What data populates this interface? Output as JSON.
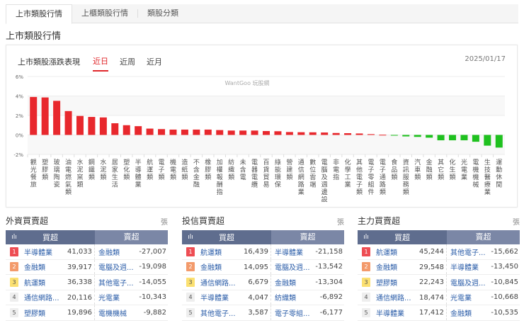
{
  "tabs": [
    "上市類股行情",
    "上櫃類股行情",
    "類股分類"
  ],
  "section_title": "上市類股行情",
  "chart_panel": {
    "label": "上市類股漲跌表現",
    "periods": [
      "近日",
      "近周",
      "近月"
    ],
    "active_period": "近日",
    "date": "2025/01/17",
    "watermark": "WantGoo 玩股網"
  },
  "chart_data": {
    "type": "bar",
    "ylim": [
      -2,
      6
    ],
    "yticks": [
      "6%",
      "4%",
      "2%",
      "0%",
      "-2%"
    ],
    "colors": {
      "up": "#e8282d",
      "down": "#1fc11f"
    },
    "categories": [
      "觀光餐旅",
      "塑膠類",
      "玻璃陶瓷",
      "油電燃氣類",
      "水泥窯類",
      "鋼鐵類",
      "水泥類",
      "居家生活",
      "塑化類",
      "半導體業",
      "航運類",
      "電子類",
      "機電類",
      "造紙類",
      "不含金融",
      "橡膠類",
      "加權報酬指",
      "紡織類",
      "未含電",
      "電器電纜",
      "百貨貿易",
      "綠能環保",
      "營建類",
      "通信網路業",
      "數位雲端",
      "電腦及週邊設",
      "非電指",
      "化學工業",
      "其他電子類",
      "電子零組件",
      "電子通路類",
      "食品類",
      "資訊服務類",
      "汽車類",
      "金融類",
      "其它類",
      "化生類",
      "光電業",
      "電機機械",
      "生技醫療業",
      "運動休閒"
    ],
    "values": [
      3.9,
      3.85,
      3.5,
      2.45,
      1.95,
      1.85,
      1.8,
      1.2,
      1.0,
      0.9,
      0.65,
      0.6,
      0.55,
      0.55,
      0.55,
      0.55,
      0.5,
      0.45,
      0.45,
      0.45,
      0.4,
      0.38,
      0.3,
      0.28,
      0.27,
      0.25,
      0.2,
      0.18,
      0.15,
      0.08,
      0.02,
      -0.02,
      -0.15,
      -0.2,
      -0.28,
      -0.55,
      -0.55,
      -0.55,
      -0.7,
      -1.1,
      -1.3
    ]
  },
  "tables": [
    {
      "title": "外資買賣超",
      "more": "張",
      "buy_header": "買超",
      "sell_header": "賣超",
      "rows": [
        {
          "rank": "1",
          "buy": "半導體業",
          "buy_val": "41,033",
          "sell": "金融類",
          "sell_val": "-27,007"
        },
        {
          "rank": "2",
          "buy": "金融類",
          "buy_val": "39,917",
          "sell": "電腦及週...",
          "sell_val": "-19,098"
        },
        {
          "rank": "3",
          "buy": "航運類",
          "buy_val": "36,338",
          "sell": "其他電子...",
          "sell_val": "-14,055"
        },
        {
          "rank": "4",
          "buy": "通信網路...",
          "buy_val": "20,116",
          "sell": "光電業",
          "sell_val": "-10,343"
        },
        {
          "rank": "5",
          "buy": "塑膠類",
          "buy_val": "19,896",
          "sell": "電機機械",
          "sell_val": "-9,882"
        }
      ]
    },
    {
      "title": "投信買賣超",
      "more": "張",
      "buy_header": "買超",
      "sell_header": "賣超",
      "rows": [
        {
          "rank": "1",
          "buy": "航運類",
          "buy_val": "16,439",
          "sell": "半導體業",
          "sell_val": "-21,158"
        },
        {
          "rank": "2",
          "buy": "金融類",
          "buy_val": "14,095",
          "sell": "電腦及週...",
          "sell_val": "-13,542"
        },
        {
          "rank": "3",
          "buy": "通信網路...",
          "buy_val": "6,679",
          "sell": "金融類",
          "sell_val": "-13,304"
        },
        {
          "rank": "4",
          "buy": "半導體業",
          "buy_val": "4,047",
          "sell": "紡織類",
          "sell_val": "-6,892"
        },
        {
          "rank": "5",
          "buy": "其他電子...",
          "buy_val": "3,587",
          "sell": "電子零組...",
          "sell_val": "-6,177"
        }
      ]
    },
    {
      "title": "主力買賣超",
      "more": "張",
      "buy_header": "買超",
      "sell_header": "賣超",
      "rows": [
        {
          "rank": "1",
          "buy": "航運類",
          "buy_val": "45,244",
          "sell": "其他電子...",
          "sell_val": "-15,662"
        },
        {
          "rank": "2",
          "buy": "金融類",
          "buy_val": "29,548",
          "sell": "半導體業",
          "sell_val": "-13,450"
        },
        {
          "rank": "3",
          "buy": "塑膠類",
          "buy_val": "22,243",
          "sell": "電腦及週...",
          "sell_val": "-10,845"
        },
        {
          "rank": "4",
          "buy": "通信網路...",
          "buy_val": "18,474",
          "sell": "光電業",
          "sell_val": "-10,668"
        },
        {
          "rank": "5",
          "buy": "半導體業",
          "buy_val": "17,412",
          "sell": "金融類",
          "sell_val": "-10,535"
        }
      ]
    }
  ]
}
